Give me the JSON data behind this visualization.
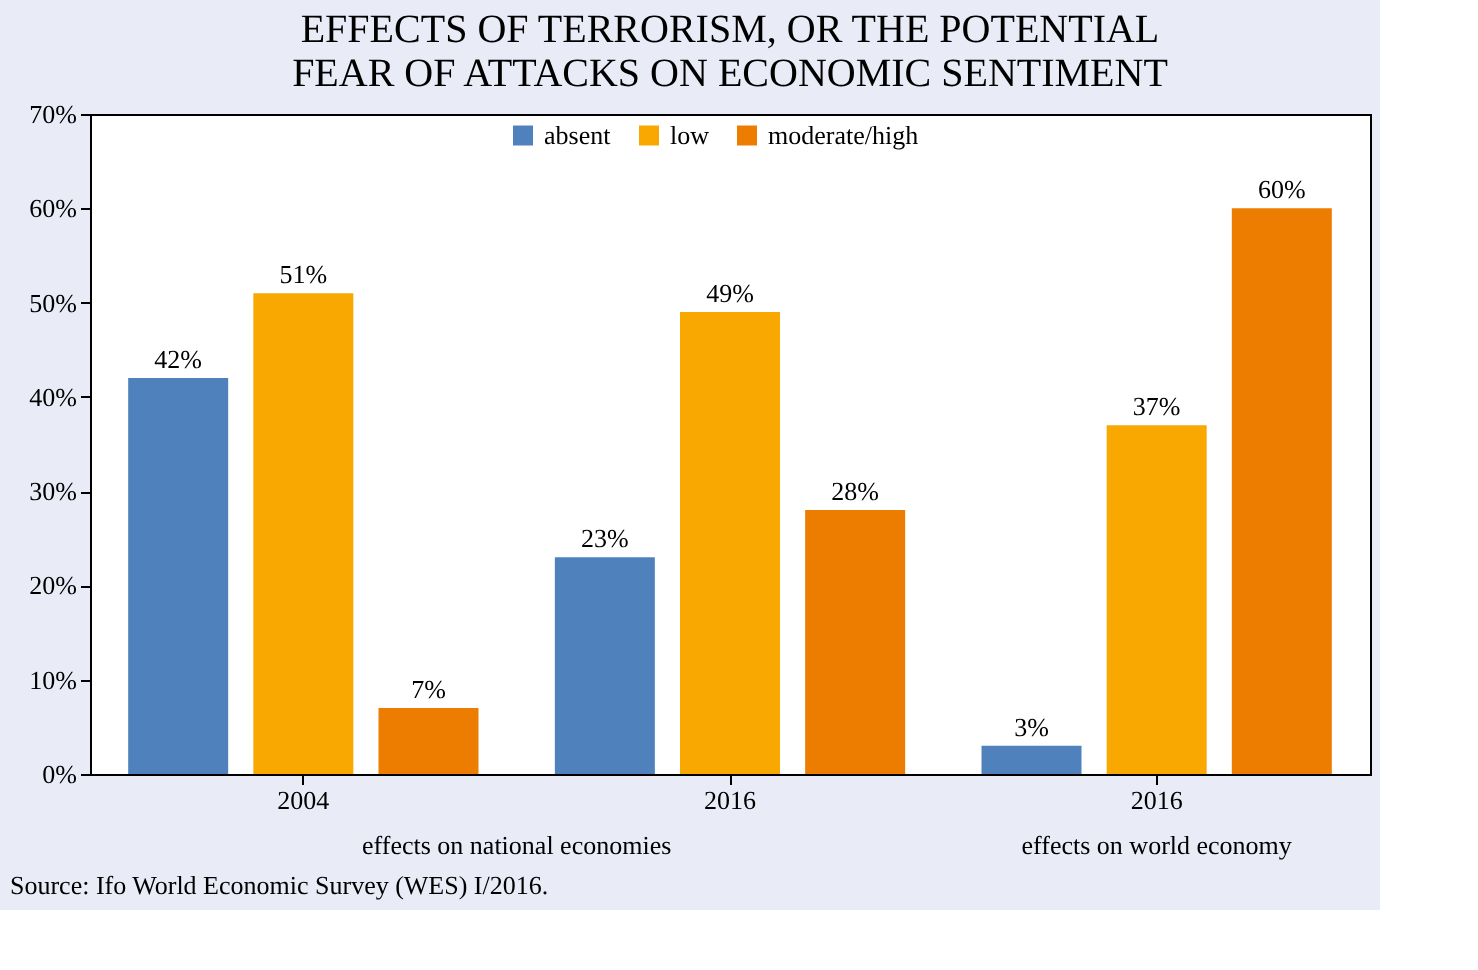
{
  "chart_data": {
    "type": "bar",
    "title": "EFFECTS OF TERRORISM, OR THE POTENTIAL FEAR OF ATTACKS ON ECONOMIC SENTIMENT",
    "categories": [
      "2004",
      "2016",
      "2016"
    ],
    "series": [
      {
        "name": "absent",
        "color": "#4f81bd",
        "values": [
          42,
          23,
          3
        ],
        "value_labels": [
          "42%",
          "23%",
          "3%"
        ]
      },
      {
        "name": "low",
        "color": "#f8a800",
        "values": [
          51,
          49,
          37
        ],
        "value_labels": [
          "51%",
          "49%",
          "37%"
        ]
      },
      {
        "name": "moderate/high",
        "color": "#ed7d00",
        "values": [
          7,
          28,
          60
        ],
        "value_labels": [
          "7%",
          "28%",
          "60%"
        ]
      }
    ],
    "ylim": [
      0,
      70
    ],
    "yticks": [
      {
        "value": 0,
        "label": "0%"
      },
      {
        "value": 10,
        "label": "10%"
      },
      {
        "value": 20,
        "label": "20%"
      },
      {
        "value": 30,
        "label": "30%"
      },
      {
        "value": 40,
        "label": "40%"
      },
      {
        "value": 50,
        "label": "50%"
      },
      {
        "value": 60,
        "label": "60%"
      },
      {
        "value": 70,
        "label": "70%"
      }
    ],
    "grid": false,
    "legend": "top",
    "annotations": [
      "effects on national economies",
      "effects on world economy",
      "Source: Ifo World Economic  Survey (WES) I/2016."
    ]
  }
}
